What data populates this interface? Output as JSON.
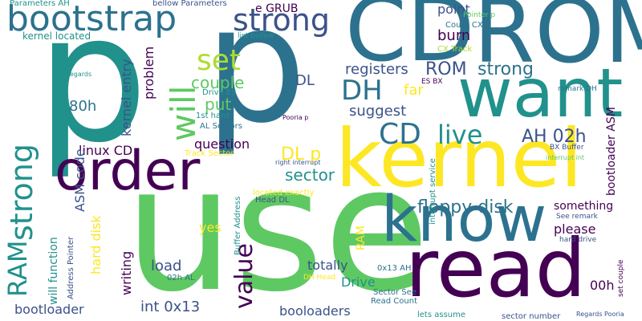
{
  "palette": {
    "c1": "#440154",
    "c2": "#3b528b",
    "c3": "#2c728e",
    "c4": "#21918c",
    "c5": "#27ad81",
    "c6": "#5ec962",
    "c7": "#addc30",
    "c8": "#fde725"
  },
  "words": [
    {
      "text": "use",
      "weight": 100,
      "color": "#5ec962",
      "orientation": "horizontal"
    },
    {
      "text": "p",
      "weight": 98,
      "color": "#21918c",
      "orientation": "horizontal"
    },
    {
      "text": "p",
      "weight": 95,
      "color": "#2c728e",
      "orientation": "horizontal"
    },
    {
      "text": "CD",
      "weight": 70,
      "color": "#2c728e",
      "orientation": "horizontal"
    },
    {
      "text": "ROM",
      "weight": 65,
      "color": "#2c728e",
      "orientation": "horizontal"
    },
    {
      "text": "kernel",
      "weight": 62,
      "color": "#fde725",
      "orientation": "horizontal"
    },
    {
      "text": "read",
      "weight": 60,
      "color": "#440154",
      "orientation": "horizontal"
    },
    {
      "text": "order",
      "weight": 55,
      "color": "#440154",
      "orientation": "horizontal"
    },
    {
      "text": "want",
      "weight": 55,
      "color": "#21918c",
      "orientation": "horizontal"
    },
    {
      "text": "know",
      "weight": 52,
      "color": "#2c728e",
      "orientation": "horizontal"
    },
    {
      "text": "bootstrap",
      "weight": 38,
      "color": "#2c728e",
      "orientation": "horizontal"
    },
    {
      "text": "strong",
      "weight": 28,
      "color": "#3b528b",
      "orientation": "horizontal"
    },
    {
      "text": "strong",
      "weight": 28,
      "color": "#21918c",
      "orientation": "vertical"
    },
    {
      "text": "strong",
      "weight": 16,
      "color": "#2c728e",
      "orientation": "horizontal"
    },
    {
      "text": "set",
      "weight": 26,
      "color": "#addc30",
      "orientation": "horizontal"
    },
    {
      "text": "will",
      "weight": 30,
      "color": "#5ec962",
      "orientation": "vertical"
    },
    {
      "text": "value",
      "weight": 30,
      "color": "#440154",
      "orientation": "vertical"
    },
    {
      "text": "RAM",
      "weight": 26,
      "color": "#21918c",
      "orientation": "vertical"
    },
    {
      "text": "DH",
      "weight": 22,
      "color": "#2c728e",
      "orientation": "horizontal"
    },
    {
      "text": "CD",
      "weight": 24,
      "color": "#2c728e",
      "orientation": "horizontal"
    },
    {
      "text": "live",
      "weight": 22,
      "color": "#21918c",
      "orientation": "horizontal"
    },
    {
      "text": "AH 02h",
      "weight": 16,
      "color": "#3b528b",
      "orientation": "horizontal"
    },
    {
      "text": "floppy disk",
      "weight": 14,
      "color": "#2c728e",
      "orientation": "horizontal"
    },
    {
      "text": "ROM",
      "weight": 13,
      "color": "#3b528b",
      "orientation": "horizontal"
    },
    {
      "text": "DL p",
      "weight": 13,
      "color": "#fde725",
      "orientation": "horizontal"
    },
    {
      "text": "sector",
      "weight": 13,
      "color": "#21918c",
      "orientation": "horizontal"
    },
    {
      "text": "couple",
      "weight": 13,
      "color": "#5ec962",
      "orientation": "horizontal"
    },
    {
      "text": "put",
      "weight": 13,
      "color": "#5ec962",
      "orientation": "horizontal"
    },
    {
      "text": "DL",
      "weight": 13,
      "color": "#3b528b",
      "orientation": "horizontal"
    },
    {
      "text": "80h",
      "weight": 13,
      "color": "#2c728e",
      "orientation": "horizontal"
    },
    {
      "text": "question",
      "weight": 11,
      "color": "#440154",
      "orientation": "horizontal"
    },
    {
      "text": "linux CD",
      "weight": 11,
      "color": "#440154",
      "orientation": "horizontal"
    },
    {
      "text": "registers",
      "weight": 12,
      "color": "#3b528b",
      "orientation": "horizontal"
    },
    {
      "text": "suggest",
      "weight": 12,
      "color": "#3b528b",
      "orientation": "horizontal"
    },
    {
      "text": "burn",
      "weight": 12,
      "color": "#440154",
      "orientation": "horizontal"
    },
    {
      "text": "point",
      "weight": 10,
      "color": "#3b528b",
      "orientation": "horizontal"
    },
    {
      "text": "far",
      "weight": 12,
      "color": "#fde725",
      "orientation": "horizontal"
    },
    {
      "text": "ES BX",
      "weight": 7,
      "color": "#440154",
      "orientation": "horizontal"
    },
    {
      "text": "kernel entry",
      "weight": 11,
      "color": "#3b528b",
      "orientation": "vertical"
    },
    {
      "text": "problem",
      "weight": 11,
      "color": "#440154",
      "orientation": "vertical"
    },
    {
      "text": "ASM code",
      "weight": 11,
      "color": "#3b528b",
      "orientation": "vertical"
    },
    {
      "text": "hard disk",
      "weight": 10,
      "color": "#fde725",
      "orientation": "vertical"
    },
    {
      "text": "will function",
      "weight": 10,
      "color": "#21918c",
      "orientation": "vertical"
    },
    {
      "text": "int 0x13",
      "weight": 12,
      "color": "#3b528b",
      "orientation": "horizontal"
    },
    {
      "text": "load",
      "weight": 12,
      "color": "#3b528b",
      "orientation": "horizontal"
    },
    {
      "text": "writing",
      "weight": 11,
      "color": "#440154",
      "orientation": "vertical"
    },
    {
      "text": "yes",
      "weight": 12,
      "color": "#fde725",
      "orientation": "horizontal"
    },
    {
      "text": "bootloader",
      "weight": 12,
      "color": "#3b528b",
      "orientation": "horizontal"
    },
    {
      "text": "booloaders",
      "weight": 12,
      "color": "#3b528b",
      "orientation": "horizontal"
    },
    {
      "text": "totally",
      "weight": 12,
      "color": "#3b528b",
      "orientation": "horizontal"
    },
    {
      "text": "Drive",
      "weight": 12,
      "color": "#21918c",
      "orientation": "horizontal"
    },
    {
      "text": "RAM",
      "weight": 10,
      "color": "#fde725",
      "orientation": "vertical"
    },
    {
      "text": "something",
      "weight": 11,
      "color": "#440154",
      "orientation": "horizontal"
    },
    {
      "text": "please",
      "weight": 11,
      "color": "#440154",
      "orientation": "horizontal"
    },
    {
      "text": "00h",
      "weight": 11,
      "color": "#440154",
      "orientation": "horizontal"
    },
    {
      "text": "bootloader ASM",
      "weight": 11,
      "color": "#440154",
      "orientation": "vertical"
    },
    {
      "text": "e GRUB",
      "weight": 9,
      "color": "#440154",
      "orientation": "horizontal"
    },
    {
      "text": "kernel located",
      "weight": 8,
      "color": "#21918c",
      "orientation": "horizontal"
    },
    {
      "text": "Parameters AH",
      "weight": 7,
      "color": "#21918c",
      "orientation": "horizontal"
    },
    {
      "text": "bellow Parameters",
      "weight": 7,
      "color": "#3b528b",
      "orientation": "horizontal"
    },
    {
      "text": "list bellow",
      "weight": 6,
      "color": "#21918c",
      "orientation": "horizontal"
    },
    {
      "text": "Pointer p",
      "weight": 6,
      "color": "#5ec962",
      "orientation": "horizontal"
    },
    {
      "text": "Count CX",
      "weight": 6,
      "color": "#2c728e",
      "orientation": "horizontal"
    },
    {
      "text": "CX Track",
      "weight": 6,
      "color": "#addc30",
      "orientation": "horizontal"
    },
    {
      "text": "remark DH",
      "weight": 6,
      "color": "#2c728e",
      "orientation": "horizontal"
    },
    {
      "text": "p Regards",
      "weight": 5,
      "color": "#21918c",
      "orientation": "horizontal"
    },
    {
      "text": "1st hard",
      "weight": 6,
      "color": "#21918c",
      "orientation": "horizontal"
    },
    {
      "text": "Drive ES",
      "weight": 6,
      "color": "#21918c",
      "orientation": "horizontal"
    },
    {
      "text": "AL Sectors",
      "weight": 6,
      "color": "#2c728e",
      "orientation": "horizontal"
    },
    {
      "text": "Track Sector",
      "weight": 6,
      "color": "#fde725",
      "orientation": "horizontal"
    },
    {
      "text": "BX Buffer",
      "weight": 6,
      "color": "#3b528b",
      "orientation": "horizontal"
    },
    {
      "text": "Pooria p",
      "weight": 5,
      "color": "#440154",
      "orientation": "horizontal"
    },
    {
      "text": "interrupt service",
      "weight": 6,
      "color": "#21918c",
      "orientation": "vertical"
    },
    {
      "text": "right interrupt",
      "weight": 5,
      "color": "#3b528b",
      "orientation": "horizontal"
    },
    {
      "text": "interrupt int",
      "weight": 5,
      "color": "#5ec962",
      "orientation": "horizontal"
    },
    {
      "text": "Buffer Address",
      "weight": 6,
      "color": "#21918c",
      "orientation": "vertical"
    },
    {
      "text": "located exactly",
      "weight": 6,
      "color": "#fde725",
      "orientation": "horizontal"
    },
    {
      "text": "Head DL",
      "weight": 6,
      "color": "#3b528b",
      "orientation": "horizontal"
    },
    {
      "text": "See remark",
      "weight": 6,
      "color": "#3b528b",
      "orientation": "horizontal"
    },
    {
      "text": "hard drive",
      "weight": 6,
      "color": "#3b528b",
      "orientation": "horizontal"
    },
    {
      "text": "set couple",
      "weight": 6,
      "color": "#440154",
      "orientation": "vertical"
    },
    {
      "text": "Address Pointer",
      "weight": 6,
      "color": "#3b528b",
      "orientation": "vertical"
    },
    {
      "text": "02h AL",
      "weight": 6,
      "color": "#2c728e",
      "orientation": "horizontal"
    },
    {
      "text": "DH Head",
      "weight": 6,
      "color": "#fde725",
      "orientation": "horizontal"
    },
    {
      "text": "0x13 AH",
      "weight": 6,
      "color": "#2c728e",
      "orientation": "horizontal"
    },
    {
      "text": "Sector See",
      "weight": 6,
      "color": "#2c728e",
      "orientation": "horizontal"
    },
    {
      "text": "Read Count",
      "weight": 6,
      "color": "#2c728e",
      "orientation": "horizontal"
    },
    {
      "text": "lets assume",
      "weight": 6,
      "color": "#21918c",
      "orientation": "horizontal"
    },
    {
      "text": "sector number",
      "weight": 6,
      "color": "#3b528b",
      "orientation": "horizontal"
    },
    {
      "text": "Regards Pooria",
      "weight": 5,
      "color": "#3b528b",
      "orientation": "horizontal"
    }
  ]
}
